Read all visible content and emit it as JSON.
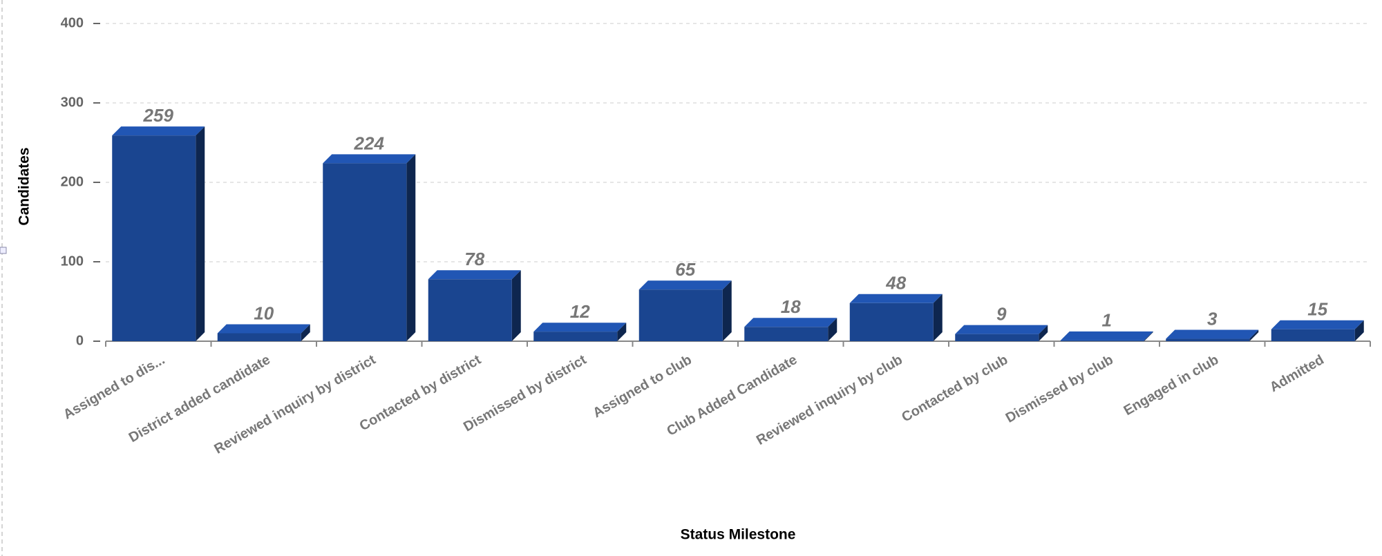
{
  "chart_data": {
    "type": "bar3d",
    "x_label": "Status Milestone",
    "y_label": "Candidates",
    "categories": [
      "Assigned to dis...",
      "District added candidate",
      "Reviewed inquiry by district",
      "Contacted by district",
      "Dismissed by district",
      "Assigned to club",
      "Club Added Candidate",
      "Reviewed inquiry by club",
      "Contacted by club",
      "Dismissed by club",
      "Engaged in club",
      "Admitted"
    ],
    "values": [
      259,
      10,
      224,
      78,
      12,
      65,
      18,
      48,
      9,
      1,
      3,
      15
    ],
    "color": "#1a4590",
    "ylim": [
      0,
      400
    ],
    "yticks": [
      0,
      100,
      200,
      300,
      400
    ],
    "grid": true
  }
}
